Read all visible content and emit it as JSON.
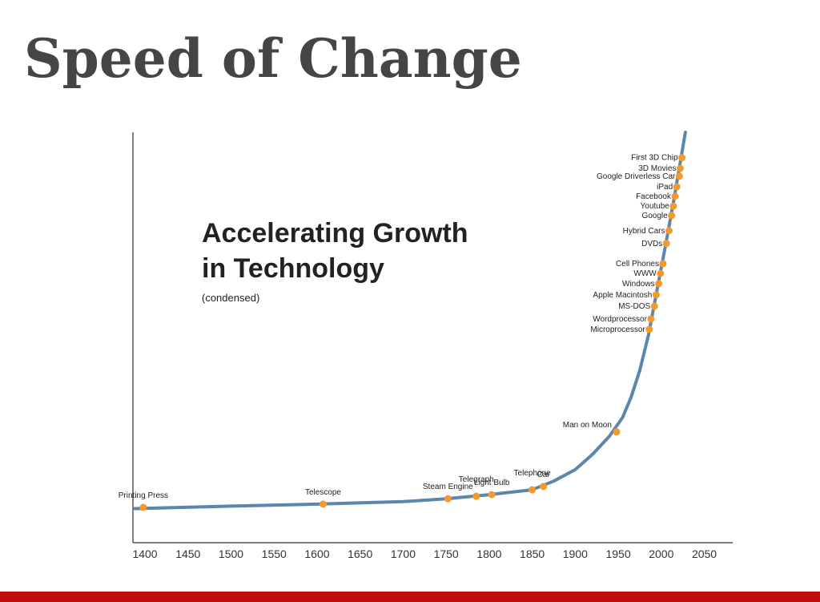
{
  "slide": {
    "title": "Speed of Change"
  },
  "chart_data": {
    "type": "line",
    "title_lines": [
      "Accelerating Growth",
      "in Technology"
    ],
    "subtitle": "(condensed)",
    "xlim": [
      1386,
      2083
    ],
    "ylim": [
      0,
      100
    ],
    "xticks": [
      1400,
      1450,
      1500,
      1550,
      1600,
      1650,
      1700,
      1750,
      1800,
      1850,
      1900,
      1950,
      2000,
      2050
    ],
    "grid": false,
    "series": [
      {
        "color": "#5b86ad",
        "x": [
          1388,
          1500,
          1600,
          1700,
          1750,
          1800,
          1850,
          1875,
          1900,
          1920,
          1940,
          1955,
          1965,
          1975,
          1985,
          1995,
          2005,
          2015,
          2028
        ],
        "values": [
          8.3,
          8.9,
          9.4,
          10.0,
          10.7,
          11.7,
          12.9,
          15.0,
          17.8,
          21.5,
          26.0,
          30.5,
          35.5,
          42.0,
          50.5,
          61.5,
          72.5,
          84.0,
          100
        ]
      }
    ],
    "milestones": {
      "color": "#f39a2e",
      "labels": [
        "Printing Press",
        "Telescope",
        "Steam Engine",
        "Telegraph",
        "Light Bulb",
        "Telephone",
        "Car",
        "Man on Moon",
        "Microprocessor",
        "Wordprocessor",
        "MS-DOS",
        "Apple Macintosh",
        "Windows",
        "WWW",
        "Cell Phones",
        "DVDs",
        "Hybrid Cars",
        "Google",
        "Youtube",
        "Facebook",
        "iPad",
        "Google Driverless Car",
        "3D Movies",
        "First 3D Chip"
      ],
      "x": [
        1398,
        1607,
        1752,
        1785,
        1803,
        1850,
        1863,
        1948,
        1986,
        1988,
        1992,
        1994,
        1997,
        1999,
        2002,
        2006,
        2009,
        2012,
        2014,
        2016,
        2018,
        2021,
        2022,
        2024
      ],
      "values": [
        8.6,
        9.4,
        10.7,
        11.3,
        11.7,
        12.9,
        13.7,
        27,
        52,
        54.5,
        57.6,
        60.4,
        63.1,
        65.6,
        68,
        72.9,
        76,
        79.7,
        82,
        84.4,
        86.7,
        89.3,
        91.2,
        93.8
      ]
    }
  }
}
